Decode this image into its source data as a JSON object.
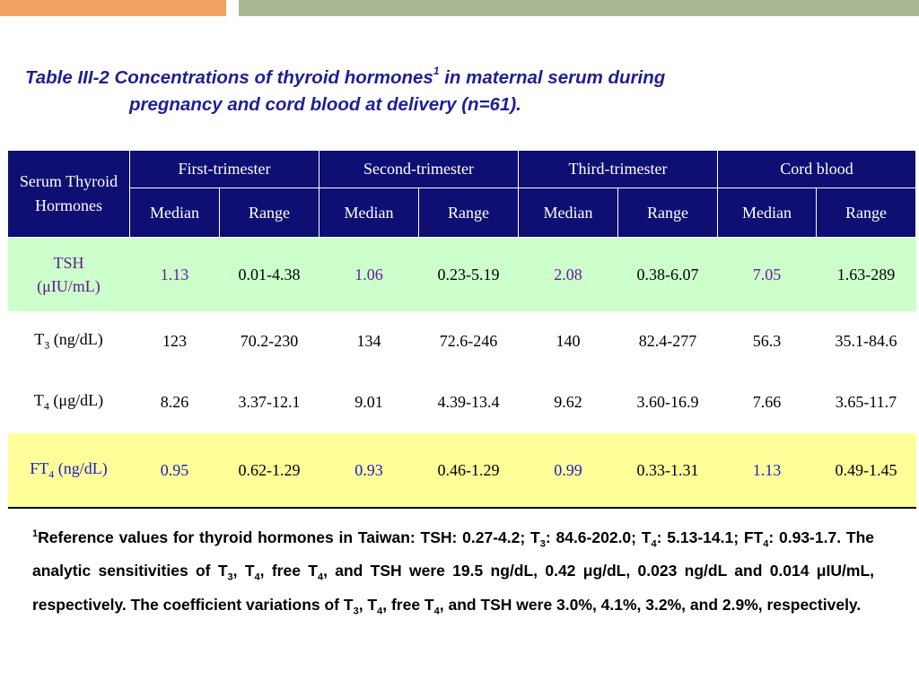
{
  "title": {
    "line1": "Table III-2 Concentrations of thyroid hormones",
    "sup": "1",
    "line1_tail": " in maternal serum during",
    "line2": "pregnancy and cord blood at delivery (n=61)."
  },
  "header": {
    "row_label": "Serum Thyroid Hormones",
    "groups": [
      "First-trimester",
      "Second-trimester",
      "Third-trimester",
      "Cord blood"
    ],
    "sub": [
      "Median",
      "Range",
      "Median",
      "Range",
      "Median",
      "Range",
      "Median",
      "Range"
    ]
  },
  "rows": [
    {
      "name": "TSH",
      "unit": "(μIU/mL)",
      "cells": [
        "1.13",
        "0.01-4.38",
        "1.06",
        "0.23-5.19",
        "2.08",
        "0.38-6.07",
        "7.05",
        "1.63-289"
      ]
    },
    {
      "name": "T",
      "sub": "3",
      "unit": " (ng/dL)",
      "cells": [
        "123",
        "70.2-230",
        "134",
        "72.6-246",
        "140",
        "82.4-277",
        "56.3",
        "35.1-84.6"
      ]
    },
    {
      "name": "T",
      "sub": "4",
      "unit": " (μg/dL)",
      "cells": [
        "8.26",
        "3.37-12.1",
        "9.01",
        "4.39-13.4",
        "9.62",
        "3.60-16.9",
        "7.66",
        "3.65-11.7"
      ]
    },
    {
      "name": "FT",
      "sub": "4",
      "unit": " (ng/dL)",
      "cells": [
        "0.95",
        "0.62-1.29",
        "0.93",
        "0.46-1.29",
        "0.99",
        "0.33-1.31",
        "1.13",
        "0.49-1.45"
      ]
    }
  ],
  "footnote": {
    "sup": "1",
    "p1": "Reference values for thyroid hormones in Taiwan: TSH: 0.27-4.2; T",
    "s1": "3",
    "p2": ": 84.6-202.0; T",
    "s2": "4",
    "p3": ": 5.13-14.1; FT",
    "s3": "4",
    "p4": ": 0.93-1.7. The analytic sensitivities of T",
    "s4": "3",
    "p5": ", T",
    "s5": "4",
    "p6": ", free T",
    "s6": "4",
    "p7": ", and TSH were 19.5 ng/dL, 0.42 μg/dL, 0.023 ng/dL and 0.014 μIU/mL, respectively. The coefficient variations of T",
    "s7": "3",
    "p8": ", T",
    "s8": "4",
    "p9": ", free T",
    "s9": "4",
    "p10": ", and TSH were 3.0%, 4.1%, 3.2%, and 2.9%, respectively."
  },
  "colors": {
    "header_bg": "#0f0e73",
    "tsh_row_bg": "#ccffcc",
    "ft4_row_bg": "#ffff99",
    "title_color": "#1f1f96",
    "accent_orange": "#f4a261",
    "accent_green": "#a8b890"
  }
}
